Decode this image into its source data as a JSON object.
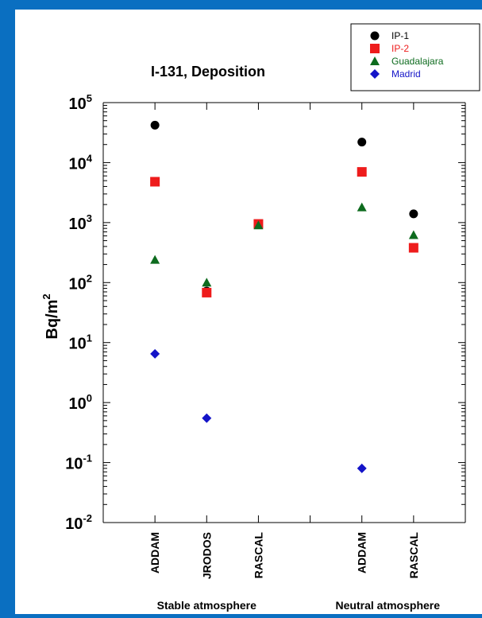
{
  "chart_data": {
    "type": "scatter",
    "title": "I-131, Deposition",
    "ylabel_base": "Bq/m",
    "ylabel_sup": "2",
    "yscale": "log",
    "ylim_exp": [
      -2,
      5
    ],
    "yticks": [
      {
        "base": "10",
        "exp": "-2",
        "e": -2
      },
      {
        "base": "10",
        "exp": "-1",
        "e": -1
      },
      {
        "base": "10",
        "exp": "0",
        "e": 0
      },
      {
        "base": "10",
        "exp": "1",
        "e": 1
      },
      {
        "base": "10",
        "exp": "2",
        "e": 2
      },
      {
        "base": "10",
        "exp": "3",
        "e": 3
      },
      {
        "base": "10",
        "exp": "4",
        "e": 4
      },
      {
        "base": "10",
        "exp": "5",
        "e": 5
      }
    ],
    "categories": [
      "ADDAM",
      "JRODOS",
      "RASCAL",
      "ADDAM",
      "RASCAL"
    ],
    "category_slots": [
      1,
      2,
      3,
      5,
      6
    ],
    "xlim_slots": [
      0,
      7
    ],
    "groups": [
      {
        "label": "Stable atmosphere",
        "center_slot": 2
      },
      {
        "label": "Neutral atmosphere",
        "center_slot": 5.5
      }
    ],
    "series": [
      {
        "name": "IP-1",
        "marker": "circle",
        "color": "#000000",
        "values": [
          42000,
          72,
          950,
          22000,
          1400
        ]
      },
      {
        "name": "IP-2",
        "marker": "square",
        "color": "#ee1c1c",
        "values": [
          4800,
          68,
          950,
          7000,
          380
        ]
      },
      {
        "name": "Guadalajara",
        "marker": "triangle",
        "color": "#0d6b1e",
        "values": [
          240,
          100,
          900,
          1800,
          620
        ]
      },
      {
        "name": "Madrid",
        "marker": "diamond",
        "color": "#1414c8",
        "values": [
          6.5,
          0.55,
          900,
          0.08,
          380
        ],
        "visible": [
          true,
          true,
          false,
          true,
          false
        ]
      }
    ],
    "legend_position": "top-right",
    "grid": false
  }
}
